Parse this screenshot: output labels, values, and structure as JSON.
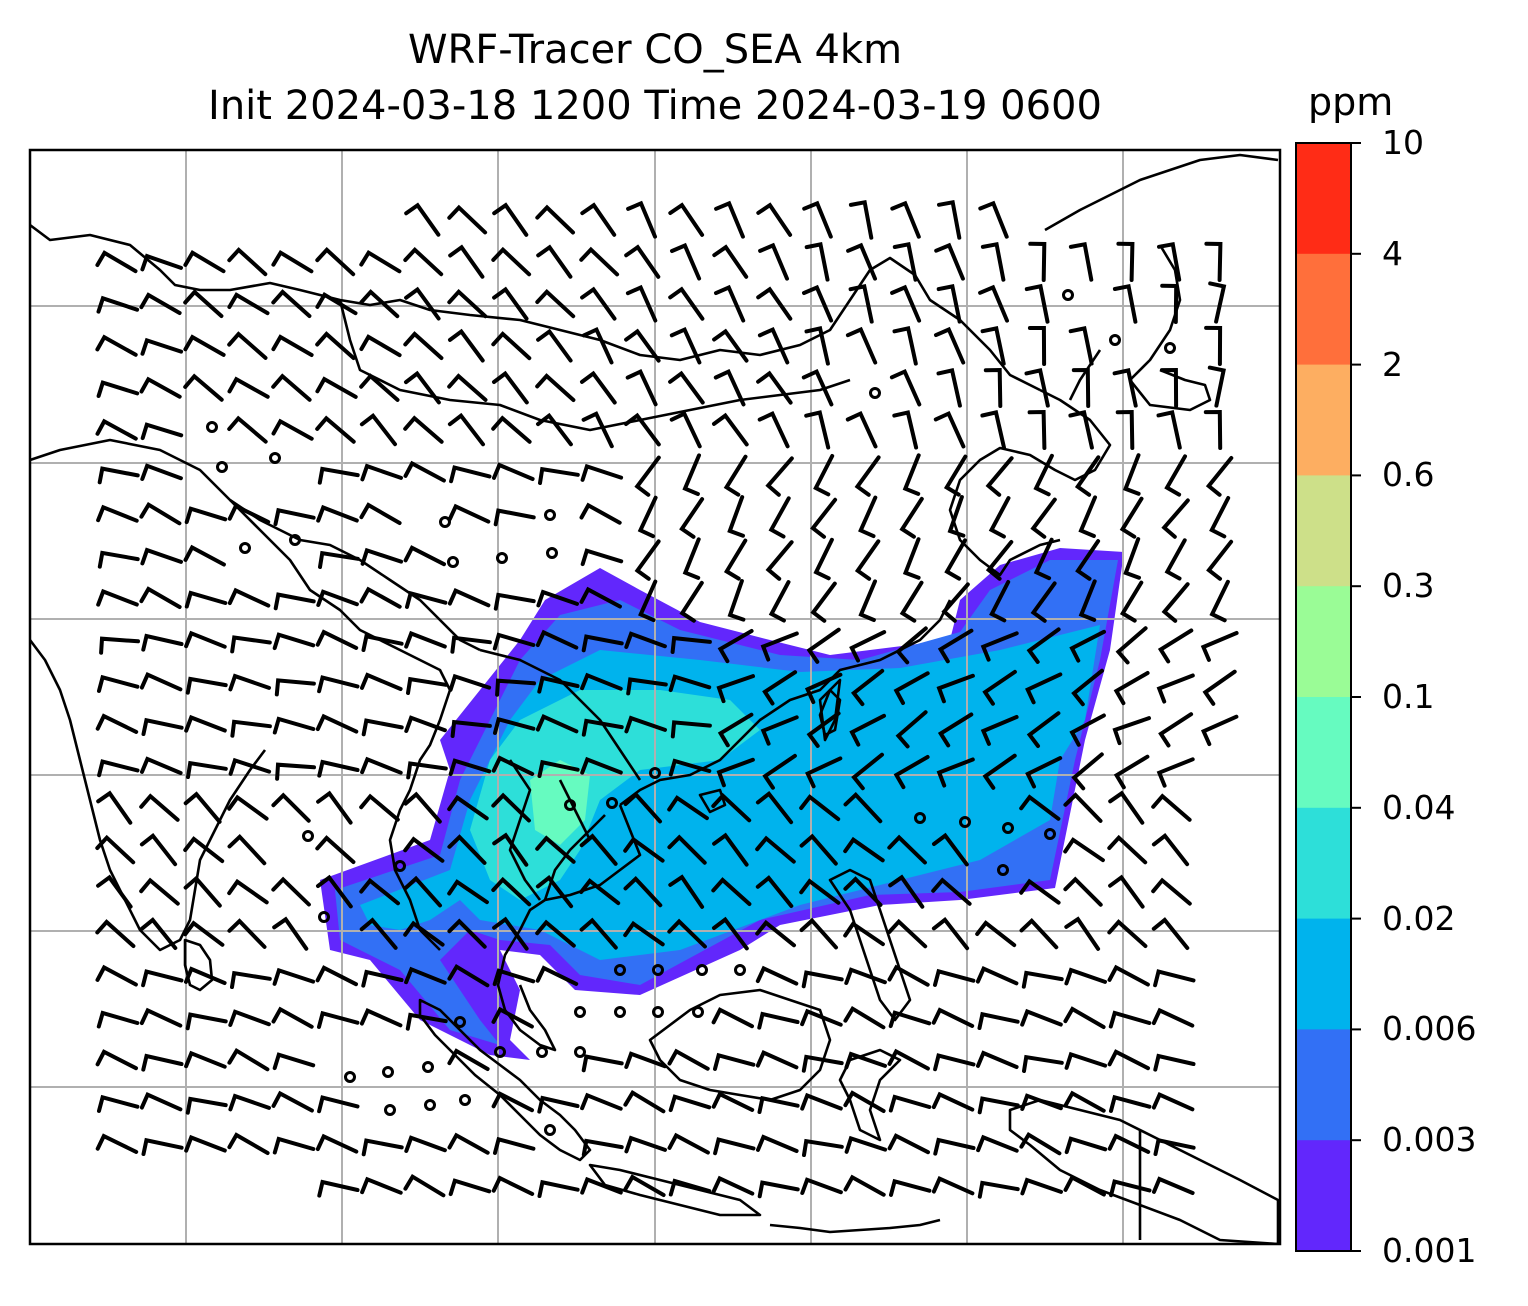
{
  "title": {
    "line1": "WRF-Tracer CO_SEA 4km",
    "line2": "Init 2024-03-18 1200 Time 2024-03-19 0600"
  },
  "colorbar": {
    "unit": "ppm",
    "ticks": [
      "10",
      "4",
      "2",
      "0.6",
      "0.3",
      "0.1",
      "0.04",
      "0.02",
      "0.006",
      "0.003",
      "0.001"
    ],
    "colors": [
      "#ff2c16",
      "#ff6f3b",
      "#fdae61",
      "#cde089",
      "#9afc96",
      "#66fbc0",
      "#2ddfd9",
      "#00b3ed",
      "#3270f5",
      "#6227fc"
    ]
  },
  "map": {
    "gridlines": true,
    "barb_color": "#000000",
    "coast_color": "#000000",
    "grid_color": "#b0b0b0"
  }
}
